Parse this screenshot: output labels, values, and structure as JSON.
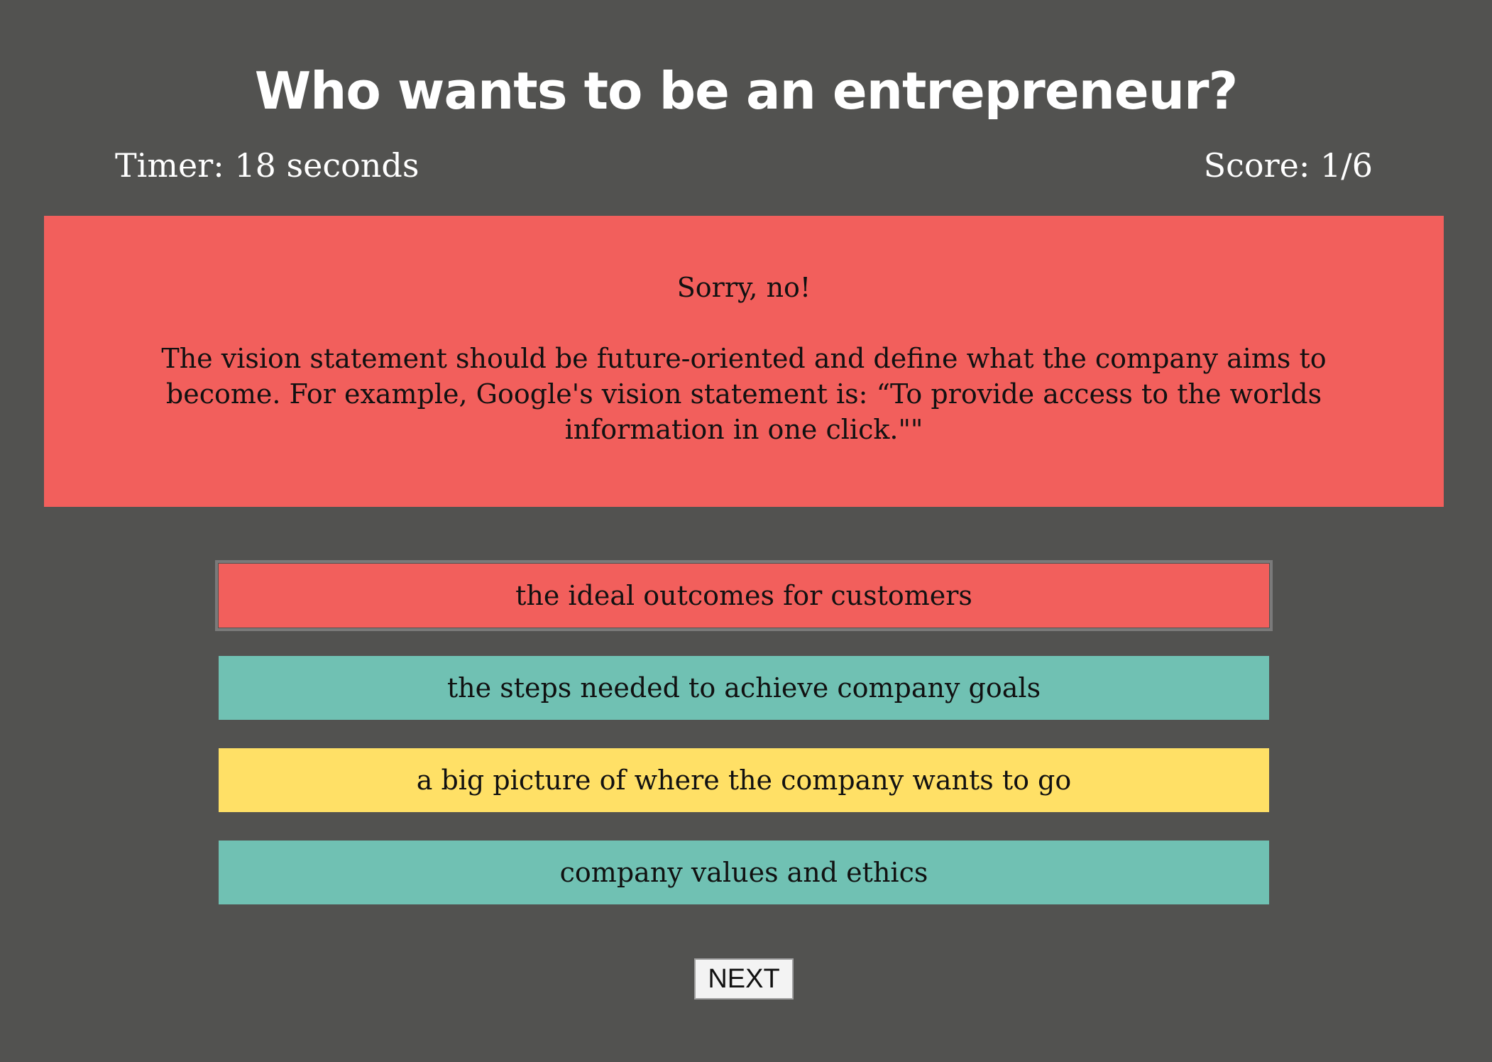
{
  "header": {
    "title": "Who wants to be an entrepreneur?"
  },
  "status": {
    "timer": "Timer: 18 seconds",
    "score": "Score: 1/6"
  },
  "feedback": {
    "headline": "Sorry, no!",
    "explanation": "The vision statement should be future-oriented and define what the company aims to become. For example, Google's vision statement is: “To provide access to the worlds information in one click.\"\""
  },
  "answers": [
    {
      "label": "the ideal outcomes for customers",
      "state": "incorrect-selected",
      "color": "#f25f5c"
    },
    {
      "label": "the steps needed to achieve company goals",
      "state": "unselected",
      "color": "#70c1b3"
    },
    {
      "label": "a big picture of where the company wants to go",
      "state": "correct",
      "color": "#ffe066"
    },
    {
      "label": "company values and ethics",
      "state": "unselected",
      "color": "#70c1b3"
    }
  ],
  "controls": {
    "next_label": "NEXT"
  },
  "colors": {
    "background": "#525250",
    "incorrect": "#f25f5c",
    "neutral": "#70c1b3",
    "correct": "#ffe066"
  }
}
